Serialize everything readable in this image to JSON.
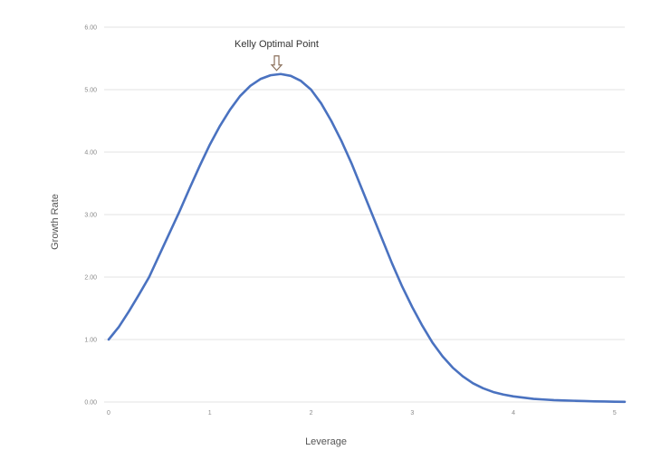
{
  "chart_data": {
    "type": "line",
    "title": "",
    "xlabel": "Leverage",
    "ylabel": "Growth Rate",
    "xlim": [
      0,
      5.1
    ],
    "ylim": [
      0,
      6
    ],
    "x_ticks": [
      "0",
      "1",
      "2",
      "3",
      "4",
      "5"
    ],
    "y_ticks": [
      "0.00",
      "1.00",
      "2.00",
      "3.00",
      "4.00",
      "5.00",
      "6.00"
    ],
    "grid": true,
    "annotation": {
      "text": "Kelly Optimal Point",
      "x": 1.66,
      "y": 5.25
    },
    "series": [
      {
        "color": "#4a72c0",
        "x": [
          0,
          0.1,
          0.2,
          0.3,
          0.4,
          0.5,
          0.6,
          0.7,
          0.8,
          0.9,
          1.0,
          1.1,
          1.2,
          1.3,
          1.4,
          1.5,
          1.6,
          1.7,
          1.8,
          1.9,
          2.0,
          2.1,
          2.2,
          2.3,
          2.4,
          2.5,
          2.6,
          2.7,
          2.8,
          2.9,
          3.0,
          3.1,
          3.2,
          3.3,
          3.4,
          3.5,
          3.6,
          3.7,
          3.8,
          3.9,
          4.0,
          4.1,
          4.2,
          4.3,
          4.4,
          4.5,
          4.6,
          4.7,
          4.8,
          4.9,
          5.0,
          5.1
        ],
        "y": [
          1.0,
          1.2,
          1.45,
          1.72,
          2.0,
          2.35,
          2.7,
          3.05,
          3.42,
          3.78,
          4.12,
          4.42,
          4.68,
          4.9,
          5.06,
          5.17,
          5.23,
          5.25,
          5.22,
          5.14,
          5.0,
          4.78,
          4.5,
          4.18,
          3.82,
          3.42,
          3.02,
          2.62,
          2.22,
          1.85,
          1.52,
          1.22,
          0.95,
          0.73,
          0.55,
          0.41,
          0.3,
          0.22,
          0.16,
          0.12,
          0.09,
          0.07,
          0.05,
          0.04,
          0.03,
          0.025,
          0.02,
          0.015,
          0.01,
          0.008,
          0.005,
          0.003
        ]
      }
    ]
  }
}
